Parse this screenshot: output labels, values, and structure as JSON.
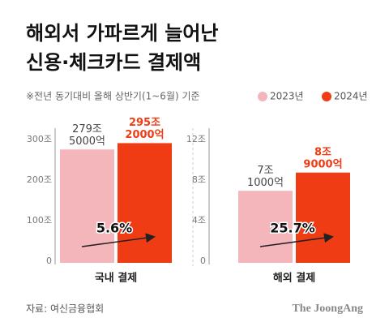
{
  "title": [
    "해외서 가파르게 늘어난",
    "신용·체크카드 결제액"
  ],
  "subtitle": "※전년 동기대비 올해 상반기(1~6월) 기준",
  "source": "자료: 여신금융협회",
  "brand": "The JoongAng",
  "chart_data": [
    {
      "type": "bar",
      "categories": [
        "국내 결제"
      ],
      "series": [
        {
          "name": "2023년",
          "color": "#f4b6bb",
          "values": [
            279.5
          ],
          "value_labels": [
            [
              "279조",
              "5000억"
            ]
          ]
        },
        {
          "name": "2024년",
          "color": "#f03c14",
          "values": [
            295.2
          ],
          "value_labels": [
            [
              "295조",
              "2000억"
            ]
          ]
        }
      ],
      "ylim": [
        0,
        300
      ],
      "yticks": [
        {
          "value": 0,
          "label": "0"
        },
        {
          "value": 100,
          "label": "100조"
        },
        {
          "value": 200,
          "label": "200조"
        },
        {
          "value": 300,
          "label": "300조"
        }
      ],
      "annotation": "5.6%"
    },
    {
      "type": "bar",
      "categories": [
        "해외 결제"
      ],
      "series": [
        {
          "color": "#f4b6bb",
          "values": [
            7.1
          ],
          "value_labels": [
            [
              "7조",
              "1000억"
            ]
          ]
        },
        {
          "color": "#f03c14",
          "values": [
            8.9
          ],
          "value_labels": [
            [
              "8조",
              "9000억"
            ]
          ]
        }
      ],
      "ylim": [
        0,
        12
      ],
      "yticks": [
        {
          "value": 0,
          "label": "0"
        },
        {
          "value": 4,
          "label": "4조"
        },
        {
          "value": 8,
          "label": "8조"
        },
        {
          "value": 12,
          "label": "12조"
        }
      ],
      "annotation": "25.7%"
    }
  ]
}
